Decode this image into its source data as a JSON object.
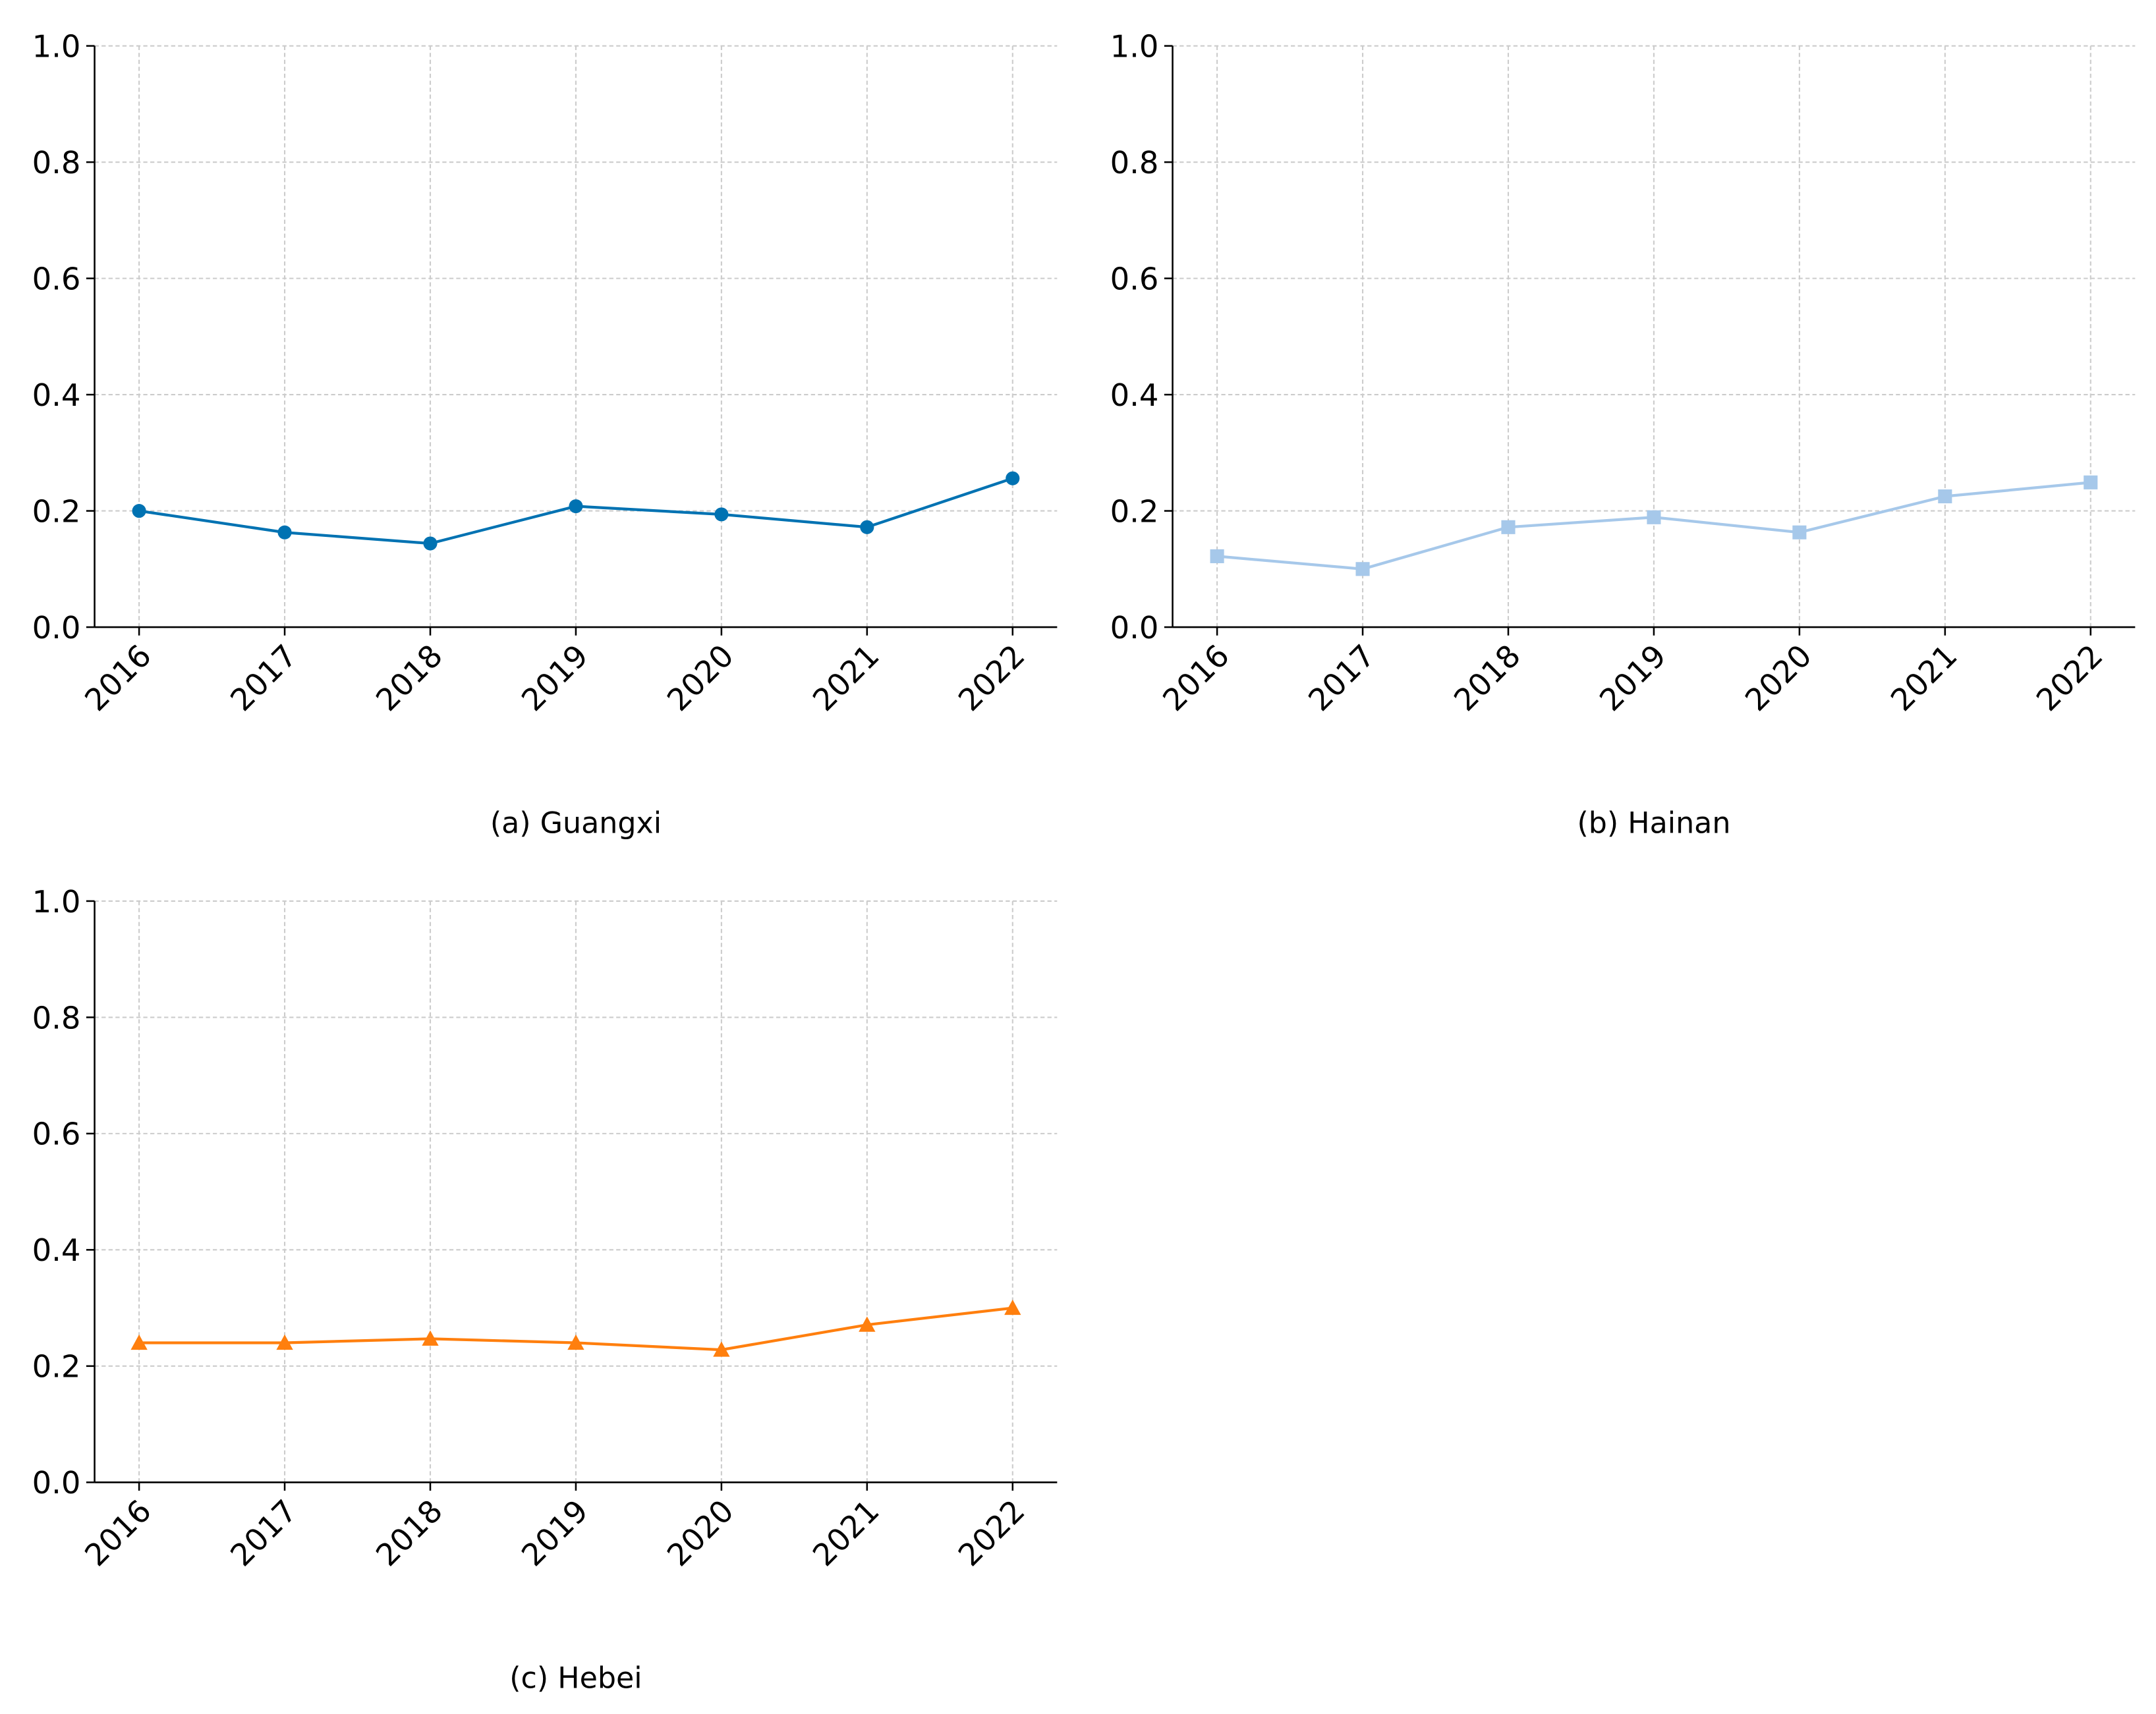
{
  "chart_data": [
    {
      "type": "line",
      "title": "(a) Guangxi",
      "marker": "circle",
      "grid": true,
      "categories": [
        "2016",
        "2017",
        "2018",
        "2019",
        "2020",
        "2021",
        "2022"
      ],
      "series": [
        {
          "color": "#0072b2",
          "values": [
            0.2,
            0.163,
            0.144,
            0.208,
            0.194,
            0.172,
            0.256
          ]
        }
      ],
      "ylim": [
        0,
        1
      ],
      "yticks": [
        {
          "value": 0,
          "label": "0.0"
        },
        {
          "value": 0.2,
          "label": "0.2"
        },
        {
          "value": 0.4,
          "label": "0.4"
        },
        {
          "value": 0.6,
          "label": "0.6"
        },
        {
          "value": 0.8,
          "label": "0.8"
        },
        {
          "value": 1,
          "label": "1.0"
        }
      ]
    },
    {
      "type": "line",
      "title": "(b) Hainan",
      "marker": "square",
      "grid": true,
      "categories": [
        "2016",
        "2017",
        "2018",
        "2019",
        "2020",
        "2021",
        "2022"
      ],
      "series": [
        {
          "color": "#a6c8ea",
          "values": [
            0.122,
            0.1,
            0.172,
            0.189,
            0.163,
            0.225,
            0.249
          ]
        }
      ],
      "ylim": [
        0,
        1
      ],
      "yticks": [
        {
          "value": 0,
          "label": "0.0"
        },
        {
          "value": 0.2,
          "label": "0.2"
        },
        {
          "value": 0.4,
          "label": "0.4"
        },
        {
          "value": 0.6,
          "label": "0.6"
        },
        {
          "value": 0.8,
          "label": "0.8"
        },
        {
          "value": 1,
          "label": "1.0"
        }
      ]
    },
    {
      "type": "line",
      "title": "(c) Hebei",
      "marker": "triangle",
      "grid": true,
      "categories": [
        "2016",
        "2017",
        "2018",
        "2019",
        "2020",
        "2021",
        "2022"
      ],
      "series": [
        {
          "color": "#ff7f0e",
          "values": [
            0.24,
            0.24,
            0.247,
            0.24,
            0.228,
            0.271,
            0.3
          ]
        }
      ],
      "ylim": [
        0,
        1
      ],
      "yticks": [
        {
          "value": 0,
          "label": "0.0"
        },
        {
          "value": 0.2,
          "label": "0.2"
        },
        {
          "value": 0.4,
          "label": "0.4"
        },
        {
          "value": 0.6,
          "label": "0.6"
        },
        {
          "value": 0.8,
          "label": "0.8"
        },
        {
          "value": 1,
          "label": "1.0"
        }
      ]
    }
  ]
}
